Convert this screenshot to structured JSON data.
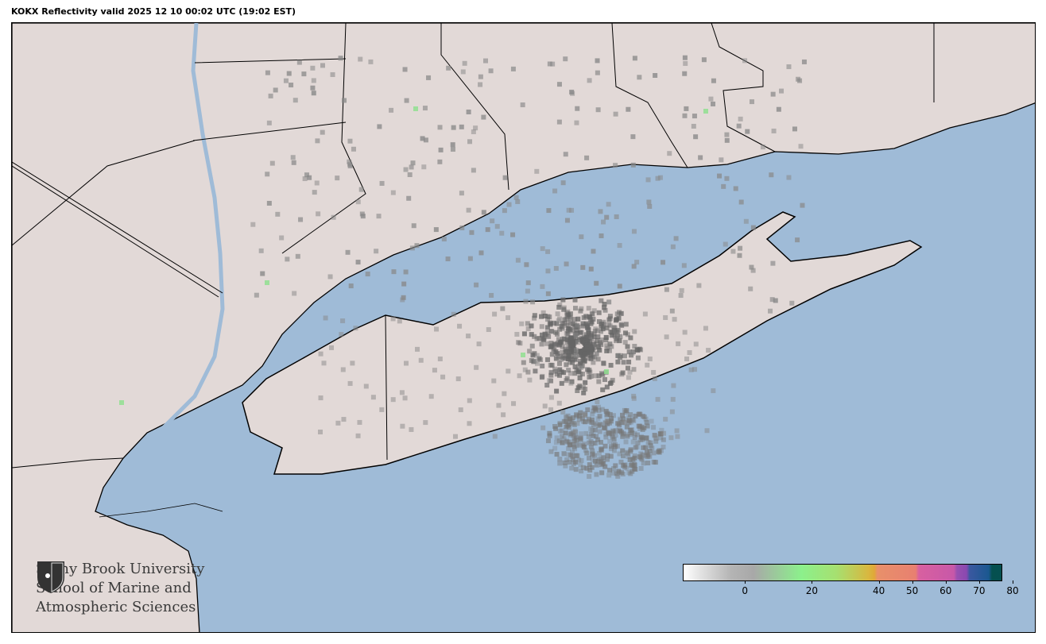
{
  "title": "KOKX Reflectivity valid 2025 12 10 00:02 UTC (19:02 EST)",
  "map": {
    "colors": {
      "land": "#e2d9d7",
      "water": "#9fbbd7",
      "border": "#000000",
      "echo": "#7a7a7a"
    }
  },
  "logo": {
    "line1": "Stony Brook University",
    "line2": "School of Marine and",
    "line3": "Atmospheric Sciences"
  },
  "colorbar": {
    "range": [
      -15,
      80
    ],
    "ticks": [
      "0",
      "20",
      "40",
      "50",
      "60",
      "70",
      "80"
    ],
    "tick_values": [
      0,
      20,
      40,
      50,
      60,
      70,
      80
    ]
  }
}
